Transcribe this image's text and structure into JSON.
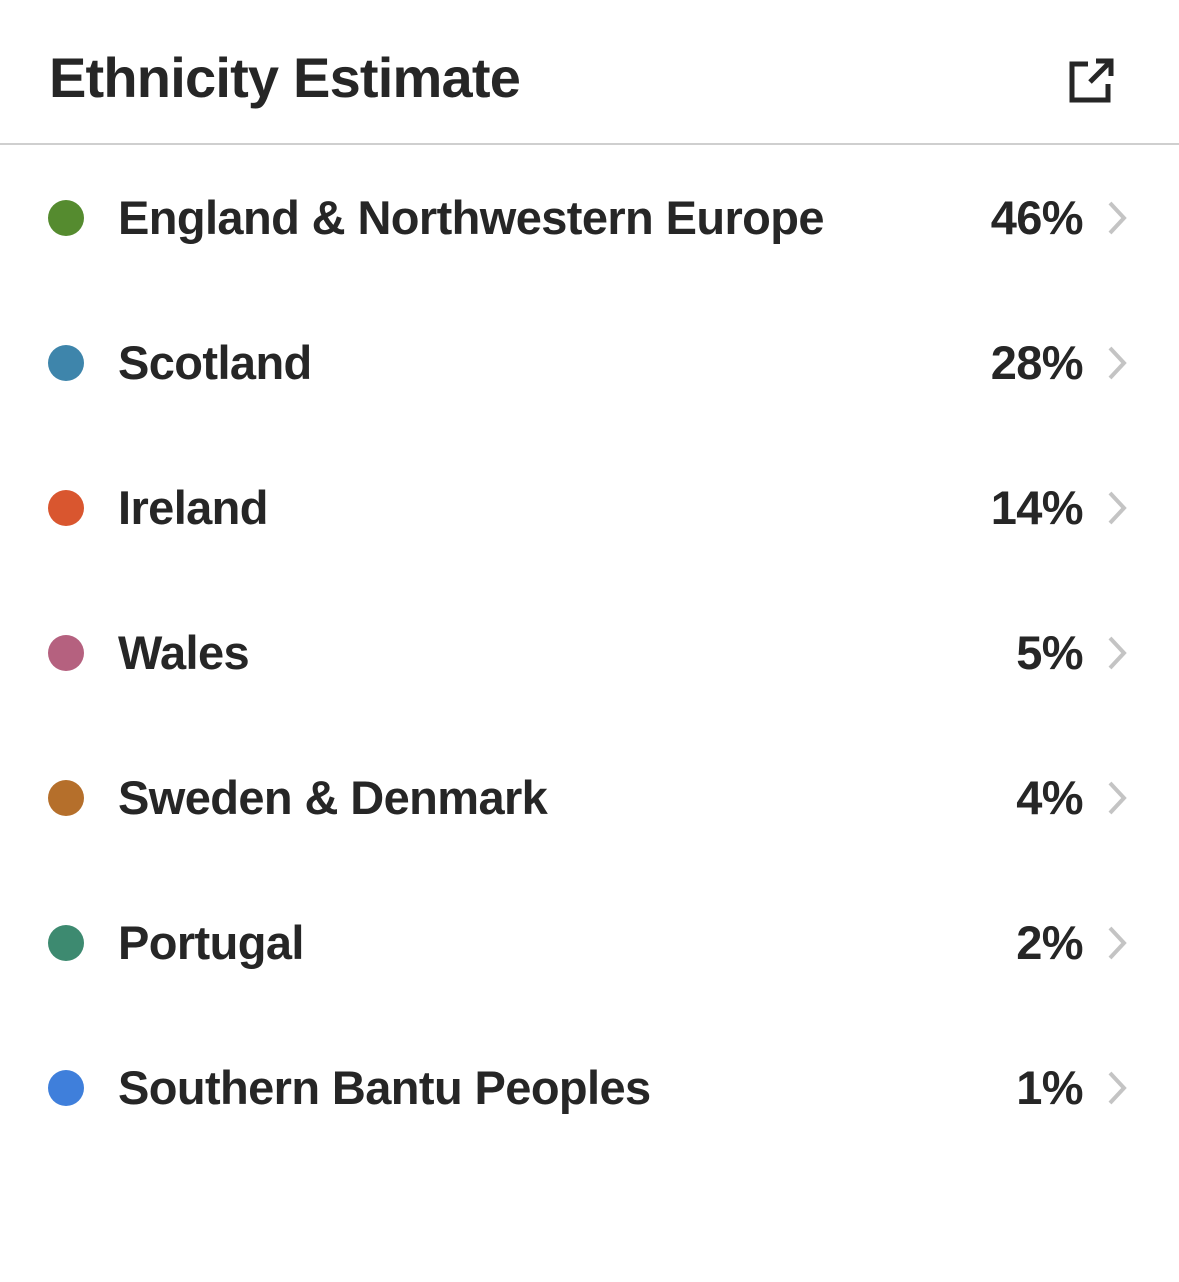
{
  "header": {
    "title": "Ethnicity Estimate",
    "icon": "external-link-icon"
  },
  "regions": [
    {
      "name": "England & Northwestern Europe",
      "percent": "46%",
      "color": "#558b2f"
    },
    {
      "name": "Scotland",
      "percent": "28%",
      "color": "#3e85ab"
    },
    {
      "name": "Ireland",
      "percent": "14%",
      "color": "#d9562f"
    },
    {
      "name": "Wales",
      "percent": "5%",
      "color": "#b5617f"
    },
    {
      "name": "Sweden & Denmark",
      "percent": "4%",
      "color": "#b56f2b"
    },
    {
      "name": "Portugal",
      "percent": "2%",
      "color": "#3d8a70"
    },
    {
      "name": "Southern Bantu Peoples",
      "percent": "1%",
      "color": "#3f7fdb"
    }
  ]
}
